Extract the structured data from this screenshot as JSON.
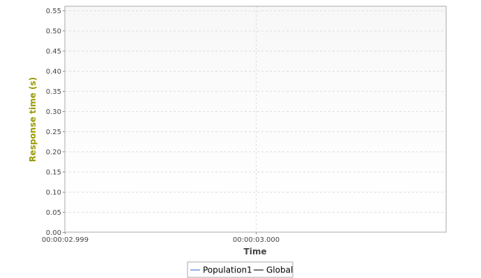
{
  "chart_data": {
    "type": "line",
    "title": "",
    "xlabel": "Time",
    "ylabel": "Response time (s)",
    "x_ticks": [
      "00:00:02.999",
      "00:00:03.000"
    ],
    "y_ticks": [
      "0.00",
      "0.05",
      "0.10",
      "0.15",
      "0.20",
      "0.25",
      "0.30",
      "0.35",
      "0.40",
      "0.45",
      "0.50",
      "0.55"
    ],
    "ylim": [
      0,
      0.56
    ],
    "grid": true,
    "legend_position": "bottom",
    "series": [
      {
        "name": "Population1",
        "color": "#3366cc",
        "x": [],
        "y": []
      },
      {
        "name": "Global",
        "color": "#000000",
        "x": [],
        "y": []
      }
    ],
    "colors": {
      "ylabel": "#999900",
      "xlabel": "#444444",
      "grid": "#dddddd",
      "plot_border": "#aaaaaa"
    }
  }
}
